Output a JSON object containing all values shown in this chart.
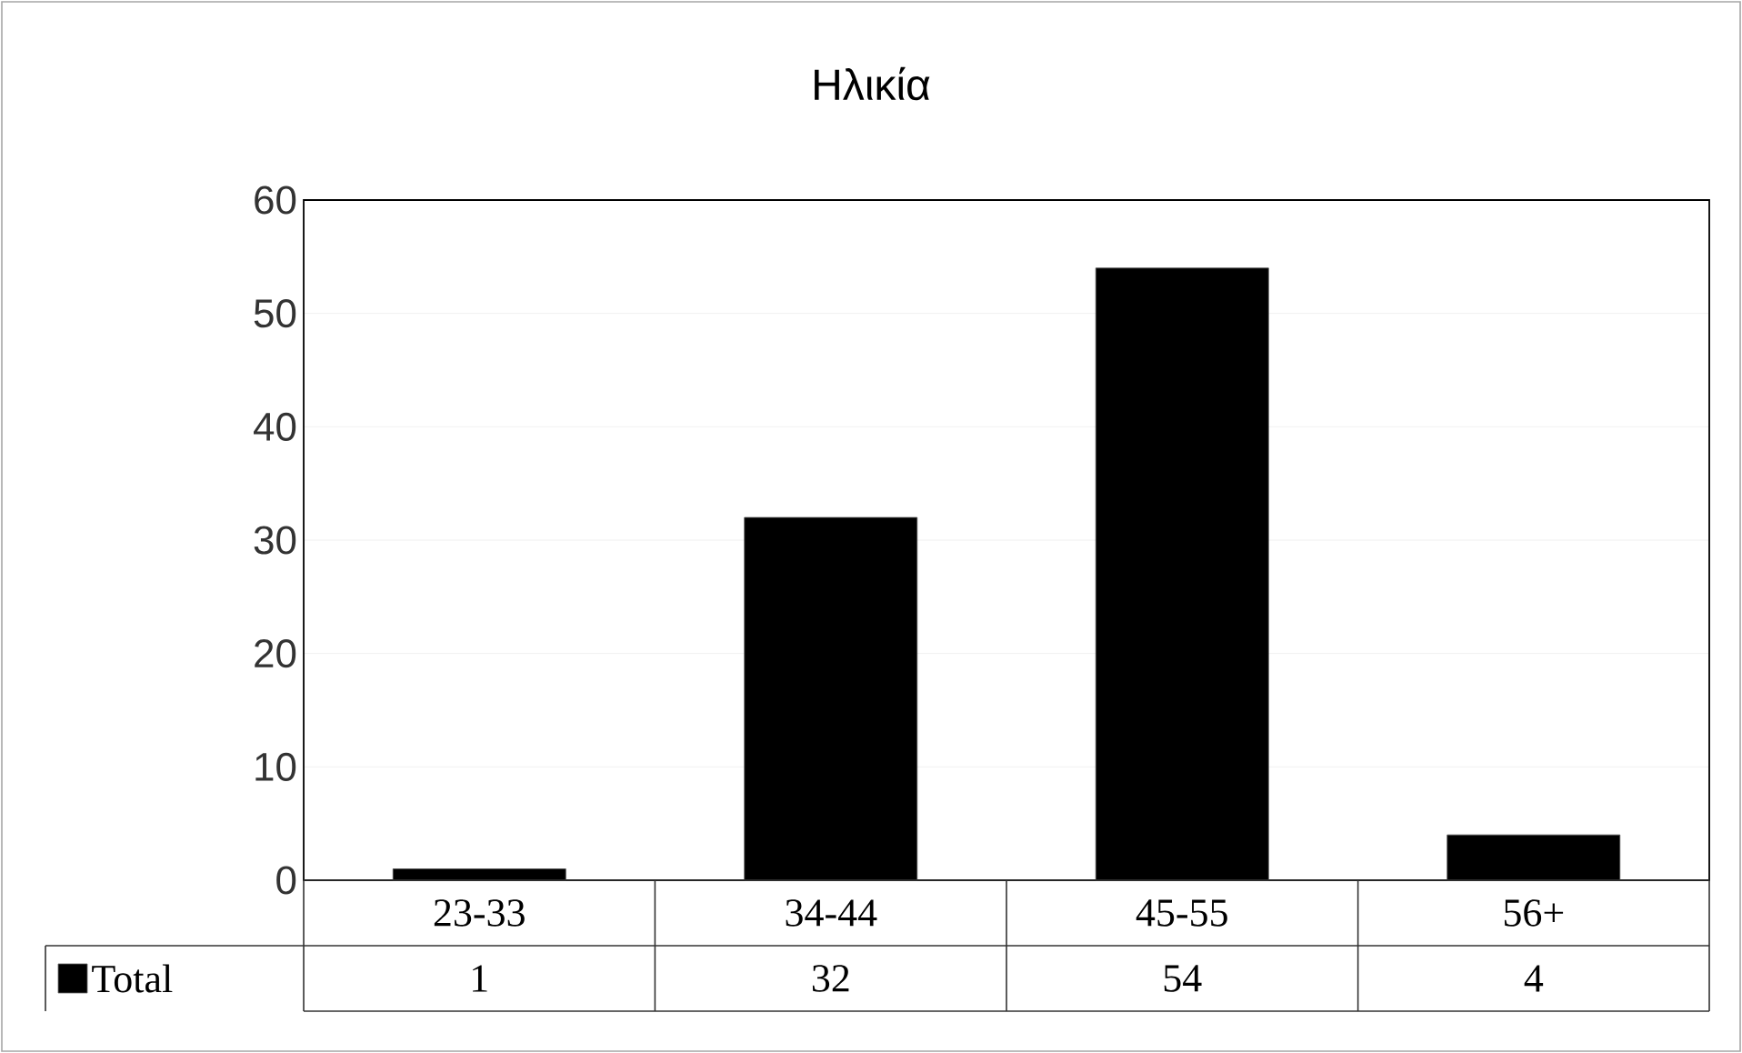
{
  "chart_data": {
    "type": "bar",
    "title": "Ηλικία",
    "categories": [
      "23-33",
      "34-44",
      "45-55",
      "56+"
    ],
    "series": [
      {
        "name": "Total",
        "color": "#000000",
        "values": [
          1,
          32,
          54,
          4
        ]
      }
    ],
    "ylim": [
      0,
      60
    ],
    "yticks": [
      0,
      10,
      20,
      30,
      40,
      50,
      60
    ],
    "grid": "y",
    "data_labels": true,
    "legend": "bottom"
  }
}
